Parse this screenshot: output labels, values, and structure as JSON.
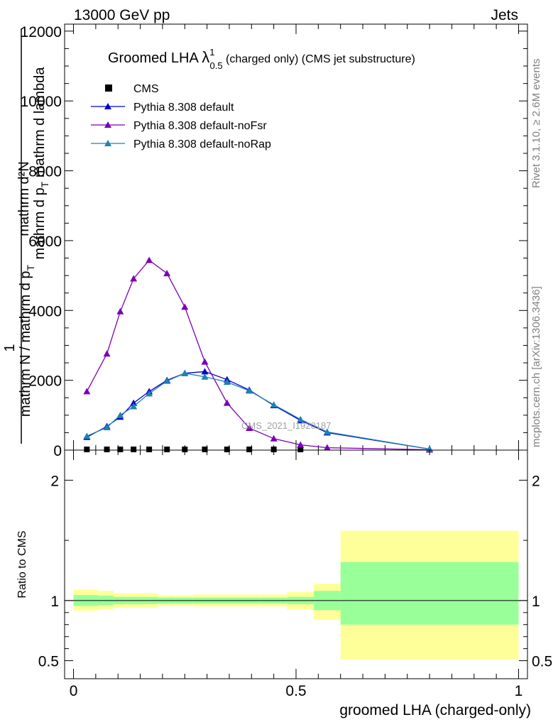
{
  "header": {
    "left": "13000 GeV pp",
    "right": "Jets"
  },
  "side_labels": {
    "top": "Rivet 3.1.10, ≥ 2.6M events",
    "bottom": "mcplots.cern.ch [arXiv:1306.3436]"
  },
  "watermark": "CMS_2021_I1920187",
  "chart_data": [
    {
      "type": "line",
      "title": {
        "main": "Groomed LHA ",
        "lambda": "λ",
        "sup": "1",
        "sub": "0.5",
        "rest": " (charged only) (CMS jet substructure)"
      },
      "ylabel": {
        "numerator": "mathrm d²N",
        "denominator": "mathrm d p",
        "denominator_sub": "T",
        "denominator_rest": " mathrm d lambda",
        "prefactor_top": "1",
        "prefactor_bottom": "mathrm N / mathrm d p",
        "prefactor_sub": "T"
      },
      "xlim": [
        -0.02,
        1.02
      ],
      "ylim": [
        0,
        12200
      ],
      "yticks": [
        0,
        2000,
        4000,
        6000,
        8000,
        10000,
        12000
      ],
      "ytick_labels": [
        "0",
        "2000",
        "4000",
        "6000",
        "8000",
        "10000",
        "12000"
      ],
      "legend_position": "top-left",
      "series": [
        {
          "name": "CMS",
          "color": "#000000",
          "marker": "square",
          "x": [
            0.03,
            0.075,
            0.105,
            0.135,
            0.17,
            0.21,
            0.25,
            0.295,
            0.345,
            0.395,
            0.45,
            0.51
          ],
          "y": [
            20,
            20,
            20,
            20,
            20,
            20,
            20,
            20,
            20,
            20,
            20,
            20
          ]
        },
        {
          "name": "Pythia 8.308 default",
          "color": "#0000cc",
          "marker": "triangle",
          "x": [
            0.03,
            0.075,
            0.105,
            0.135,
            0.17,
            0.21,
            0.25,
            0.295,
            0.345,
            0.395,
            0.45,
            0.51,
            0.57,
            0.8
          ],
          "y": [
            370,
            680,
            950,
            1350,
            1680,
            2000,
            2200,
            2250,
            2020,
            1720,
            1280,
            850,
            500,
            30
          ]
        },
        {
          "name": "Pythia 8.308 default-noFsr",
          "color": "#7b00b4",
          "marker": "triangle",
          "x": [
            0.03,
            0.075,
            0.105,
            0.135,
            0.17,
            0.21,
            0.25,
            0.295,
            0.345,
            0.395,
            0.45,
            0.51,
            0.57,
            0.8
          ],
          "y": [
            1680,
            2760,
            3970,
            4910,
            5440,
            5060,
            4100,
            2530,
            1350,
            630,
            330,
            150,
            70,
            10
          ]
        },
        {
          "name": "Pythia 8.308 default-noRap",
          "color": "#1e82b4",
          "marker": "triangle",
          "x": [
            0.03,
            0.075,
            0.105,
            0.135,
            0.17,
            0.21,
            0.25,
            0.295,
            0.345,
            0.395,
            0.45,
            0.51,
            0.57,
            0.8
          ],
          "y": [
            400,
            650,
            1000,
            1250,
            1620,
            1980,
            2200,
            2100,
            1950,
            1700,
            1300,
            880,
            520,
            30
          ]
        }
      ]
    },
    {
      "type": "area",
      "ylabel": "Ratio to CMS",
      "xlabel": "groomed LHA (charged-only)",
      "xlim": [
        -0.02,
        1.02
      ],
      "ylim": [
        0.35,
        2.25
      ],
      "yticks": [
        0.5,
        1,
        2
      ],
      "ytick_labels": [
        "0.5",
        "1",
        "2"
      ],
      "xticks": [
        0,
        0.5,
        1
      ],
      "xtick_labels": [
        "0",
        "0.5",
        "1"
      ],
      "bins": [
        {
          "lo": 0.0,
          "hi": 0.055,
          "stat": [
            0.955,
            1.045
          ],
          "total": [
            0.915,
            1.09
          ]
        },
        {
          "lo": 0.055,
          "hi": 0.09,
          "stat": [
            0.96,
            1.04
          ],
          "total": [
            0.925,
            1.08
          ]
        },
        {
          "lo": 0.09,
          "hi": 0.12,
          "stat": [
            0.97,
            1.03
          ],
          "total": [
            0.94,
            1.06
          ]
        },
        {
          "lo": 0.12,
          "hi": 0.15,
          "stat": [
            0.97,
            1.03
          ],
          "total": [
            0.94,
            1.06
          ]
        },
        {
          "lo": 0.15,
          "hi": 0.19,
          "stat": [
            0.97,
            1.03
          ],
          "total": [
            0.94,
            1.06
          ]
        },
        {
          "lo": 0.19,
          "hi": 0.23,
          "stat": [
            0.975,
            1.025
          ],
          "total": [
            0.955,
            1.045
          ]
        },
        {
          "lo": 0.23,
          "hi": 0.27,
          "stat": [
            0.975,
            1.025
          ],
          "total": [
            0.955,
            1.045
          ]
        },
        {
          "lo": 0.27,
          "hi": 0.32,
          "stat": [
            0.975,
            1.025
          ],
          "total": [
            0.95,
            1.05
          ]
        },
        {
          "lo": 0.32,
          "hi": 0.37,
          "stat": [
            0.975,
            1.025
          ],
          "total": [
            0.95,
            1.05
          ]
        },
        {
          "lo": 0.37,
          "hi": 0.42,
          "stat": [
            0.975,
            1.025
          ],
          "total": [
            0.95,
            1.05
          ]
        },
        {
          "lo": 0.42,
          "hi": 0.48,
          "stat": [
            0.975,
            1.025
          ],
          "total": [
            0.95,
            1.05
          ]
        },
        {
          "lo": 0.48,
          "hi": 0.54,
          "stat": [
            0.97,
            1.03
          ],
          "total": [
            0.925,
            1.07
          ]
        },
        {
          "lo": 0.54,
          "hi": 0.6,
          "stat": [
            0.92,
            1.08
          ],
          "total": [
            0.84,
            1.14
          ]
        },
        {
          "lo": 0.6,
          "hi": 1.0,
          "stat": [
            0.8,
            1.32
          ],
          "total": [
            0.51,
            1.58
          ]
        }
      ]
    }
  ]
}
